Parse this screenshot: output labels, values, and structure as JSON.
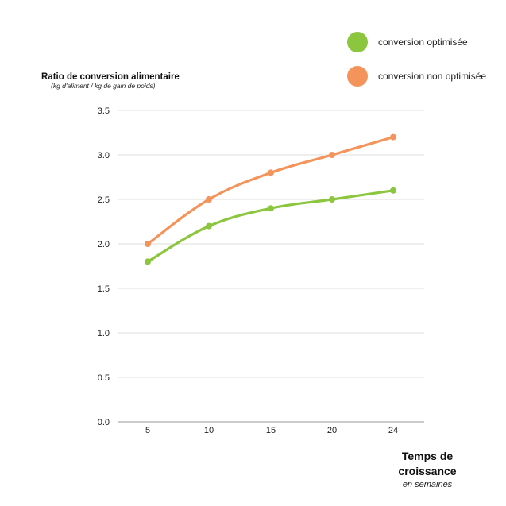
{
  "chart_data": {
    "type": "line",
    "x": [
      5,
      10,
      15,
      20,
      24
    ],
    "categories": [
      "5",
      "10",
      "15",
      "20",
      "24"
    ],
    "series": [
      {
        "name": "conversion optimisée",
        "color": "#8CC63F",
        "values": [
          1.8,
          2.2,
          2.4,
          2.5,
          2.6
        ]
      },
      {
        "name": "conversion non optimisée",
        "color": "#F4935A",
        "values": [
          2.0,
          2.5,
          2.8,
          3.0,
          3.2
        ]
      }
    ],
    "ylabel": "Ratio de conversion alimentaire",
    "ylabel_sub": "(kg d'aliment / kg de gain de poids)",
    "xlabel": "Temps de croissance",
    "xlabel_sub": "en semaines",
    "ylim": [
      0,
      3.5
    ],
    "yticks": [
      "0.0",
      "0.5",
      "1.0",
      "1.5",
      "2.0",
      "2.5",
      "3.0",
      "3.5"
    ],
    "grid": true,
    "legend_position": "top-right"
  }
}
